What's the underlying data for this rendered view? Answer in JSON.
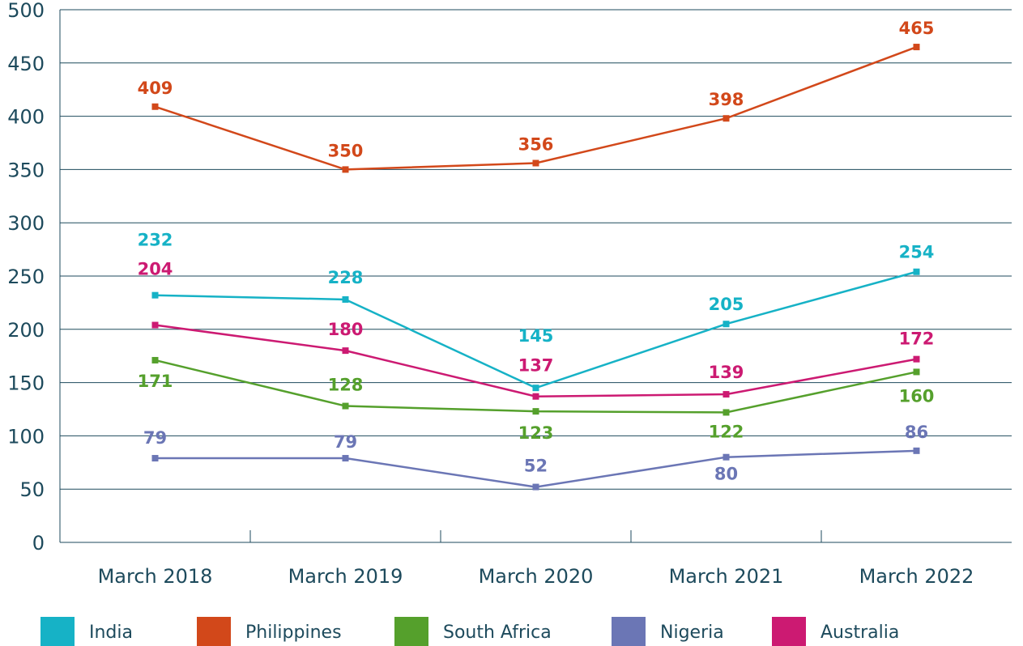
{
  "chart_data": {
    "type": "line",
    "categories": [
      "March 2018",
      "March 2019",
      "March 2020",
      "March 2021",
      "March 2022"
    ],
    "series": [
      {
        "name": "India",
        "color": "#16b2c6",
        "values": [
          232,
          228,
          145,
          205,
          254
        ]
      },
      {
        "name": "Philippines",
        "color": "#d2481a",
        "values": [
          409,
          350,
          356,
          398,
          465
        ]
      },
      {
        "name": "South Africa",
        "color": "#55a02c",
        "values": [
          171,
          128,
          123,
          122,
          160
        ]
      },
      {
        "name": "Nigeria",
        "color": "#6b76b5",
        "values": [
          79,
          79,
          52,
          80,
          86
        ]
      },
      {
        "name": "Australia",
        "color": "#cc1a72",
        "values": [
          204,
          180,
          137,
          139,
          172
        ]
      }
    ],
    "ylim": [
      0,
      500
    ],
    "yticks": [
      0,
      50,
      100,
      150,
      200,
      250,
      300,
      350,
      400,
      450,
      500
    ],
    "grid": true,
    "legend": "bottom"
  }
}
